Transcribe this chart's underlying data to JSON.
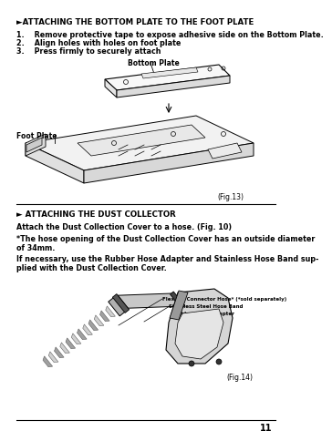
{
  "bg_color": "#ffffff",
  "page_number": "11",
  "section1_title": "►ATTACHING THE BOTTOM PLATE TO THE FOOT PLATE",
  "section1_steps": [
    "1.    Remove protective tape to expose adhesive side on the Bottom Plate.",
    "2.    Align holes with holes on foot plate",
    "3.    Press firmly to securely attach"
  ],
  "fig13_label": "(Fig.13)",
  "bottom_plate_label": "Bottom Plate",
  "foot_plate_label": "Foot Plate",
  "section2_title": "► ATTACHING THE DUST COLLECTOR",
  "section2_para1": "Attach the Dust Collection Cover to a hose. (Fig. 10)",
  "section2_para2": "*The hose opening of the Dust Collection Cover has an outside diameter\nof 34mm.",
  "section2_para3": "If necessary, use the Rubber Hose Adapter and Stainless Hose Band sup-\nplied with the Dust Collection Cover.",
  "fig14_label": "(Fig.14)",
  "hose_label1": "Flexible Connector Hose* (*sold separately)",
  "hose_label2": "Stainless Steel Hose Band",
  "hose_label3": "Rubber Hose Adapter"
}
